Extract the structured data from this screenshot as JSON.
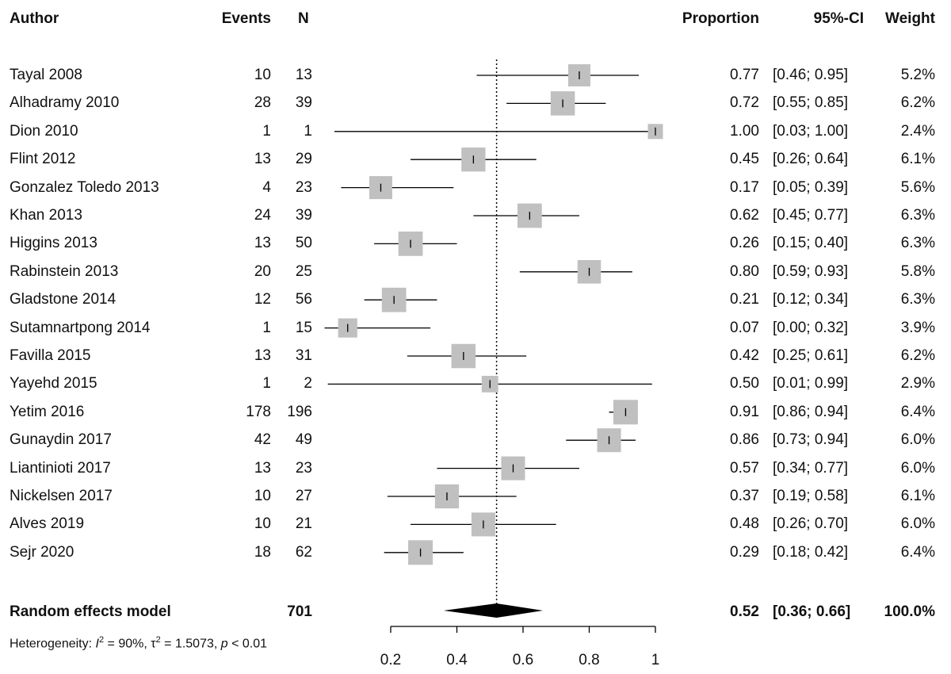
{
  "chart_data": {
    "type": "forest",
    "headers": {
      "author": "Author",
      "events": "Events",
      "n": "N",
      "proportion": "Proportion",
      "ci": "95%-CI",
      "weight": "Weight"
    },
    "studies": [
      {
        "author": "Tayal 2008",
        "events": "10",
        "n": "13",
        "est": 0.77,
        "lo": 0.46,
        "hi": 0.95,
        "prop": "0.77",
        "ci": "[0.46; 0.95]",
        "weight": "5.2%",
        "w": 5.2
      },
      {
        "author": "Alhadramy 2010",
        "events": "28",
        "n": "39",
        "est": 0.72,
        "lo": 0.55,
        "hi": 0.85,
        "prop": "0.72",
        "ci": "[0.55; 0.85]",
        "weight": "6.2%",
        "w": 6.2
      },
      {
        "author": "Dion 2010",
        "events": "1",
        "n": "1",
        "est": 1.0,
        "lo": 0.03,
        "hi": 1.0,
        "prop": "1.00",
        "ci": "[0.03; 1.00]",
        "weight": "2.4%",
        "w": 2.4
      },
      {
        "author": "Flint 2012",
        "events": "13",
        "n": "29",
        "est": 0.45,
        "lo": 0.26,
        "hi": 0.64,
        "prop": "0.45",
        "ci": "[0.26; 0.64]",
        "weight": "6.1%",
        "w": 6.1
      },
      {
        "author": "Gonzalez Toledo 2013",
        "events": "4",
        "n": "23",
        "est": 0.17,
        "lo": 0.05,
        "hi": 0.39,
        "prop": "0.17",
        "ci": "[0.05; 0.39]",
        "weight": "5.6%",
        "w": 5.6
      },
      {
        "author": "Khan 2013",
        "events": "24",
        "n": "39",
        "est": 0.62,
        "lo": 0.45,
        "hi": 0.77,
        "prop": "0.62",
        "ci": "[0.45; 0.77]",
        "weight": "6.3%",
        "w": 6.3
      },
      {
        "author": "Higgins 2013",
        "events": "13",
        "n": "50",
        "est": 0.26,
        "lo": 0.15,
        "hi": 0.4,
        "prop": "0.26",
        "ci": "[0.15; 0.40]",
        "weight": "6.3%",
        "w": 6.3
      },
      {
        "author": "Rabinstein 2013",
        "events": "20",
        "n": "25",
        "est": 0.8,
        "lo": 0.59,
        "hi": 0.93,
        "prop": "0.80",
        "ci": "[0.59; 0.93]",
        "weight": "5.8%",
        "w": 5.8
      },
      {
        "author": "Gladstone 2014",
        "events": "12",
        "n": "56",
        "est": 0.21,
        "lo": 0.12,
        "hi": 0.34,
        "prop": "0.21",
        "ci": "[0.12; 0.34]",
        "weight": "6.3%",
        "w": 6.3
      },
      {
        "author": "Sutamnartpong 2014",
        "events": "1",
        "n": "15",
        "est": 0.07,
        "lo": 0.0,
        "hi": 0.32,
        "prop": "0.07",
        "ci": "[0.00; 0.32]",
        "weight": "3.9%",
        "w": 3.9
      },
      {
        "author": "Favilla 2015",
        "events": "13",
        "n": "31",
        "est": 0.42,
        "lo": 0.25,
        "hi": 0.61,
        "prop": "0.42",
        "ci": "[0.25; 0.61]",
        "weight": "6.2%",
        "w": 6.2
      },
      {
        "author": "Yayehd 2015",
        "events": "1",
        "n": "2",
        "est": 0.5,
        "lo": 0.01,
        "hi": 0.99,
        "prop": "0.50",
        "ci": "[0.01; 0.99]",
        "weight": "2.9%",
        "w": 2.9
      },
      {
        "author": "Yetim 2016",
        "events": "178",
        "n": "196",
        "est": 0.91,
        "lo": 0.86,
        "hi": 0.94,
        "prop": "0.91",
        "ci": "[0.86; 0.94]",
        "weight": "6.4%",
        "w": 6.4
      },
      {
        "author": "Gunaydin  2017",
        "events": "42",
        "n": "49",
        "est": 0.86,
        "lo": 0.73,
        "hi": 0.94,
        "prop": "0.86",
        "ci": "[0.73; 0.94]",
        "weight": "6.0%",
        "w": 6.0
      },
      {
        "author": "Liantinioti 2017",
        "events": "13",
        "n": "23",
        "est": 0.57,
        "lo": 0.34,
        "hi": 0.77,
        "prop": "0.57",
        "ci": "[0.34; 0.77]",
        "weight": "6.0%",
        "w": 6.0
      },
      {
        "author": "Nickelsen 2017",
        "events": "10",
        "n": "27",
        "est": 0.37,
        "lo": 0.19,
        "hi": 0.58,
        "prop": "0.37",
        "ci": "[0.19; 0.58]",
        "weight": "6.1%",
        "w": 6.1
      },
      {
        "author": "Alves 2019",
        "events": "10",
        "n": "21",
        "est": 0.48,
        "lo": 0.26,
        "hi": 0.7,
        "prop": "0.48",
        "ci": "[0.26; 0.70]",
        "weight": "6.0%",
        "w": 6.0
      },
      {
        "author": "Sejr 2020",
        "events": "18",
        "n": "62",
        "est": 0.29,
        "lo": 0.18,
        "hi": 0.42,
        "prop": "0.29",
        "ci": "[0.18; 0.42]",
        "weight": "6.4%",
        "w": 6.4
      }
    ],
    "summary": {
      "label": "Random effects model",
      "n": "701",
      "est": 0.52,
      "lo": 0.36,
      "hi": 0.66,
      "prop": "0.52",
      "ci": "[0.36; 0.66]",
      "weight": "100.0%"
    },
    "heterogeneity": {
      "prefix": "Heterogeneity: ",
      "i2_sym": "I",
      "i2_val": " = 90%, ",
      "tau_sym": "τ",
      "tau_val": " = 1.5073, ",
      "p_sym": "p",
      "p_val": " < 0.01",
      "sup": "2"
    },
    "xaxis": {
      "range": [
        0.2,
        1.0
      ],
      "ticks": [
        0.2,
        0.4,
        0.6,
        0.8,
        1.0
      ],
      "tick_labels": [
        "0.2",
        "0.4",
        "0.6",
        "0.8",
        "1"
      ]
    },
    "reference_line": 0.52,
    "colors": {
      "square": "#c0c0c0",
      "line": "#000000",
      "diamond": "#000000"
    }
  }
}
